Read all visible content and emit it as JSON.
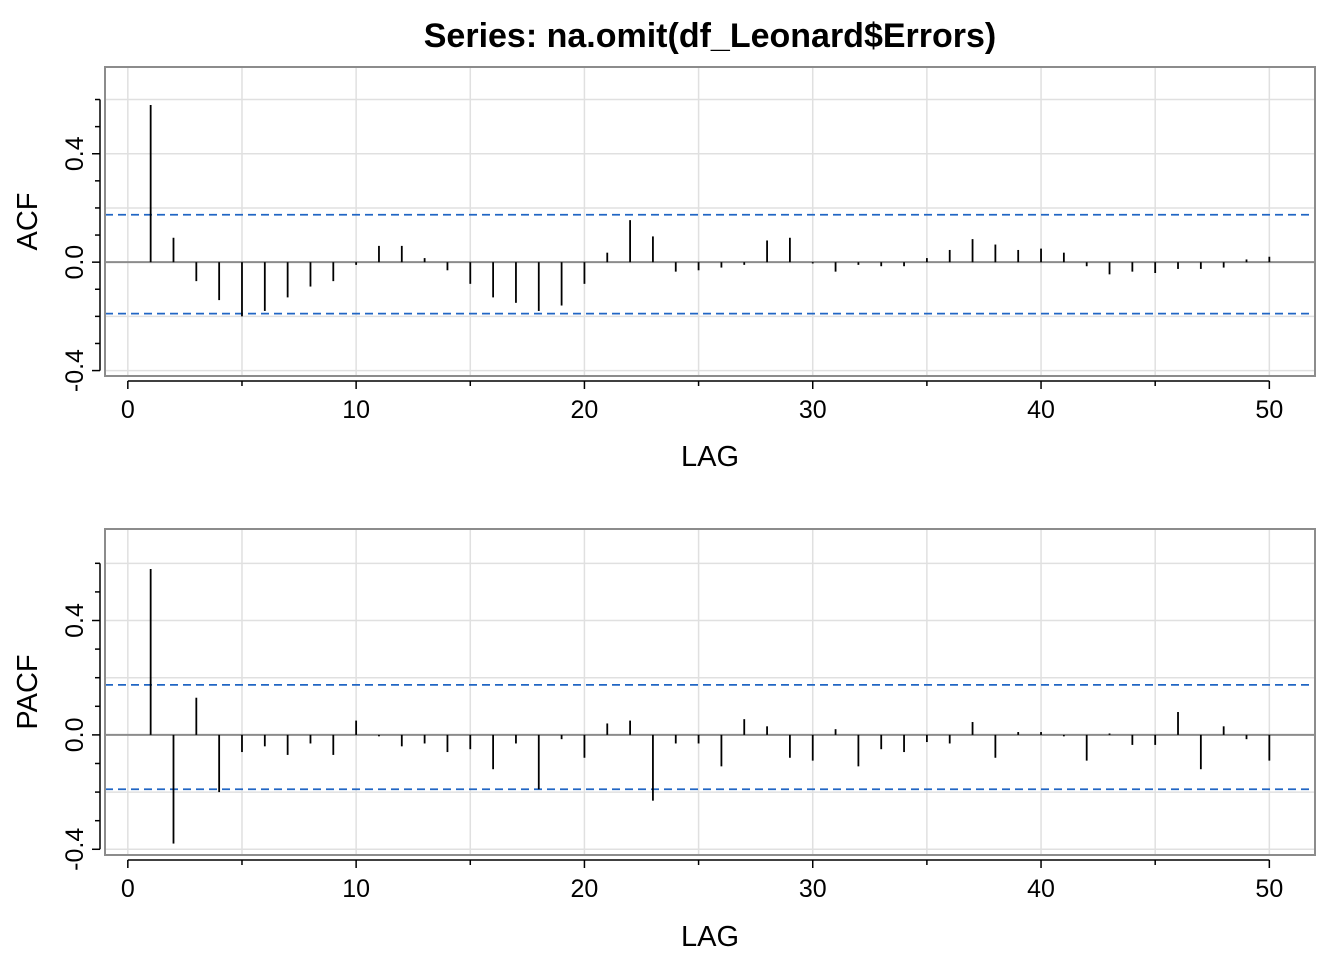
{
  "title": "Series:  na.omit(df_Leonard$Errors)",
  "chart_data": [
    {
      "type": "bar",
      "title": "Series:  na.omit(df_Leonard$Errors)",
      "xlabel": "LAG",
      "ylabel": "ACF",
      "xlim": [
        -1,
        52
      ],
      "ylim": [
        -0.42,
        0.72
      ],
      "xticks": [
        "0",
        "10",
        "20",
        "30",
        "40",
        "50"
      ],
      "yticks": [
        "-0.4",
        "0.0",
        "0.4"
      ],
      "grid": true,
      "confidence_band": [
        -0.19,
        0.175
      ],
      "lags": [
        1,
        2,
        3,
        4,
        5,
        6,
        7,
        8,
        9,
        10,
        11,
        12,
        13,
        14,
        15,
        16,
        17,
        18,
        19,
        20,
        21,
        22,
        23,
        24,
        25,
        26,
        27,
        28,
        29,
        30,
        31,
        32,
        33,
        34,
        35,
        36,
        37,
        38,
        39,
        40,
        41,
        42,
        43,
        44,
        45,
        46,
        47,
        48,
        49,
        50
      ],
      "values": [
        0.58,
        0.09,
        -0.07,
        -0.14,
        -0.2,
        -0.18,
        -0.13,
        -0.09,
        -0.07,
        -0.01,
        0.06,
        0.06,
        0.015,
        -0.03,
        -0.08,
        -0.13,
        -0.15,
        -0.18,
        -0.16,
        -0.08,
        0.035,
        0.155,
        0.095,
        -0.035,
        -0.03,
        -0.02,
        -0.01,
        0.08,
        0.09,
        -0.005,
        -0.035,
        -0.01,
        -0.015,
        -0.015,
        0.015,
        0.045,
        0.085,
        0.065,
        0.045,
        0.05,
        0.035,
        -0.015,
        -0.045,
        -0.035,
        -0.04,
        -0.025,
        -0.025,
        -0.02,
        0.01,
        0.02
      ],
      "colors": {
        "bars": "#000000",
        "band": "#2166c4",
        "zero_line": "#8c8c8c",
        "grid": "#e0e0e0",
        "frame": "#8c8c8c"
      }
    },
    {
      "type": "bar",
      "title": "",
      "xlabel": "LAG",
      "ylabel": "PACF",
      "xlim": [
        -1,
        52
      ],
      "ylim": [
        -0.42,
        0.72
      ],
      "xticks": [
        "0",
        "10",
        "20",
        "30",
        "40",
        "50"
      ],
      "yticks": [
        "-0.4",
        "0.0",
        "0.4"
      ],
      "grid": true,
      "confidence_band": [
        -0.19,
        0.175
      ],
      "lags": [
        1,
        2,
        3,
        4,
        5,
        6,
        7,
        8,
        9,
        10,
        11,
        12,
        13,
        14,
        15,
        16,
        17,
        18,
        19,
        20,
        21,
        22,
        23,
        24,
        25,
        26,
        27,
        28,
        29,
        30,
        31,
        32,
        33,
        34,
        35,
        36,
        37,
        38,
        39,
        40,
        41,
        42,
        43,
        44,
        45,
        46,
        47,
        48,
        49,
        50
      ],
      "values": [
        0.58,
        -0.38,
        0.13,
        -0.2,
        -0.06,
        -0.04,
        -0.07,
        -0.03,
        -0.07,
        0.05,
        -0.005,
        -0.04,
        -0.03,
        -0.06,
        -0.05,
        -0.12,
        -0.03,
        -0.19,
        -0.015,
        -0.08,
        0.04,
        0.05,
        -0.23,
        -0.03,
        -0.03,
        -0.11,
        0.055,
        0.03,
        -0.08,
        -0.09,
        0.02,
        -0.11,
        -0.05,
        -0.06,
        -0.025,
        -0.03,
        0.045,
        -0.08,
        0.01,
        0.01,
        -0.005,
        -0.09,
        0.005,
        -0.035,
        -0.035,
        0.08,
        -0.12,
        0.03,
        -0.015,
        -0.09
      ],
      "colors": {
        "bars": "#000000",
        "band": "#2166c4",
        "zero_line": "#8c8c8c",
        "grid": "#e0e0e0",
        "frame": "#8c8c8c"
      }
    }
  ]
}
